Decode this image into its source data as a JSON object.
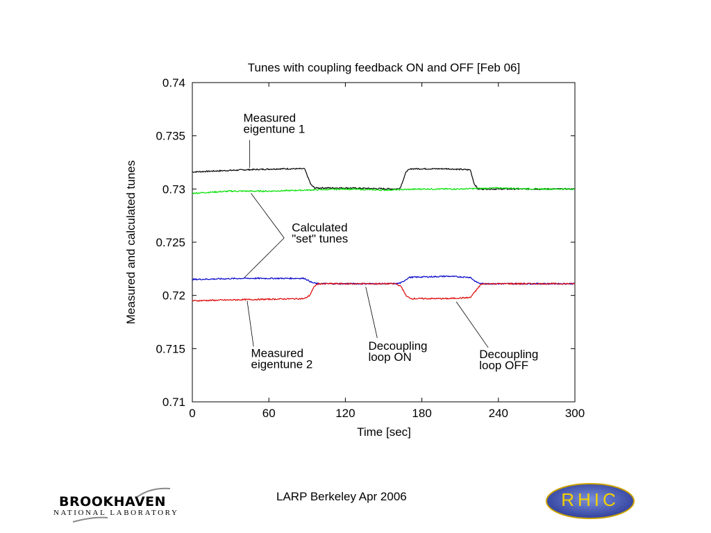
{
  "chart_data": {
    "type": "line",
    "title": "Tunes with coupling feedback ON and OFF   [Feb 06]",
    "xlabel": "Time [sec]",
    "ylabel": "Measured and calculated tunes",
    "xlim": [
      0,
      300
    ],
    "ylim": [
      0.71,
      0.74
    ],
    "xticks": [
      "0",
      "60",
      "120",
      "180",
      "240",
      "300"
    ],
    "yticks": [
      "0.71",
      "0.715",
      "0.72",
      "0.725",
      "0.73",
      "0.735",
      "0.74"
    ],
    "series": [
      {
        "color": "#000000",
        "points": [
          [
            0,
            0.7316
          ],
          [
            40,
            0.7318
          ],
          [
            70,
            0.7319
          ],
          [
            88,
            0.7319
          ],
          [
            93,
            0.7304
          ],
          [
            96,
            0.7301
          ],
          [
            120,
            0.7301
          ],
          [
            160,
            0.73
          ],
          [
            163,
            0.7301
          ],
          [
            168,
            0.7317
          ],
          [
            172,
            0.7319
          ],
          [
            200,
            0.7319
          ],
          [
            218,
            0.7318
          ],
          [
            221,
            0.7305
          ],
          [
            224,
            0.73
          ],
          [
            260,
            0.73
          ],
          [
            300,
            0.73
          ]
        ]
      },
      {
        "color": "#00e000",
        "points": [
          [
            0,
            0.7296
          ],
          [
            30,
            0.7298
          ],
          [
            60,
            0.7298
          ],
          [
            90,
            0.7299
          ],
          [
            120,
            0.73
          ],
          [
            150,
            0.7299
          ],
          [
            180,
            0.73
          ],
          [
            210,
            0.73
          ],
          [
            240,
            0.7301
          ],
          [
            270,
            0.73
          ],
          [
            300,
            0.73
          ]
        ]
      },
      {
        "color": "#0000cc",
        "points": [
          [
            0,
            0.7215
          ],
          [
            40,
            0.7216
          ],
          [
            88,
            0.7216
          ],
          [
            94,
            0.7212
          ],
          [
            98,
            0.7211
          ],
          [
            130,
            0.7211
          ],
          [
            160,
            0.7211
          ],
          [
            164,
            0.7212
          ],
          [
            170,
            0.7217
          ],
          [
            200,
            0.7218
          ],
          [
            218,
            0.7217
          ],
          [
            222,
            0.7213
          ],
          [
            226,
            0.7211
          ],
          [
            260,
            0.7211
          ],
          [
            300,
            0.7211
          ]
        ]
      },
      {
        "color": "#dd0000",
        "points": [
          [
            0,
            0.7195
          ],
          [
            40,
            0.7196
          ],
          [
            88,
            0.7197
          ],
          [
            92,
            0.72
          ],
          [
            96,
            0.7209
          ],
          [
            99,
            0.7211
          ],
          [
            130,
            0.7211
          ],
          [
            160,
            0.7211
          ],
          [
            164,
            0.7208
          ],
          [
            168,
            0.7199
          ],
          [
            172,
            0.7197
          ],
          [
            200,
            0.7197
          ],
          [
            218,
            0.7198
          ],
          [
            222,
            0.7204
          ],
          [
            226,
            0.721
          ],
          [
            229,
            0.7211
          ],
          [
            260,
            0.7211
          ],
          [
            300,
            0.7211
          ]
        ]
      }
    ],
    "annotations": [
      {
        "lines": [
          "Measured",
          "eigentune 1"
        ],
        "pos": [
          40,
          0.7363
        ],
        "pointers": [
          [
            [
              45,
              0.7346
            ],
            [
              45,
              0.732
            ]
          ]
        ]
      },
      {
        "lines": [
          "Calculated",
          "\"set\" tunes"
        ],
        "pos": [
          78,
          0.726
        ],
        "pointers": [
          [
            [
              72,
              0.7254
            ],
            [
              46,
              0.7296
            ]
          ],
          [
            [
              72,
              0.7254
            ],
            [
              41,
              0.7217
            ]
          ]
        ]
      },
      {
        "lines": [
          "Measured",
          "eigentune 2"
        ],
        "pos": [
          46,
          0.7142
        ],
        "pointers": [
          [
            [
              48,
              0.7152
            ],
            [
              43,
              0.7195
            ]
          ]
        ]
      },
      {
        "lines": [
          "Decoupling",
          "loop ON"
        ],
        "pos": [
          138,
          0.7149
        ],
        "pointers": [
          [
            [
              145,
              0.716
            ],
            [
              136,
              0.7208
            ]
          ]
        ]
      },
      {
        "lines": [
          "Decoupling",
          "loop OFF"
        ],
        "pos": [
          225,
          0.7141
        ],
        "pointers": [
          [
            [
              232,
              0.7151
            ],
            [
              207,
              0.7194
            ]
          ]
        ]
      }
    ]
  },
  "footer": {
    "text": "LARP Berkeley  Apr 2006",
    "logo_left_name": "BROOKHAVEN",
    "logo_left_sub": "NATIONAL LABORATORY",
    "logo_right_text": "RHIC"
  }
}
